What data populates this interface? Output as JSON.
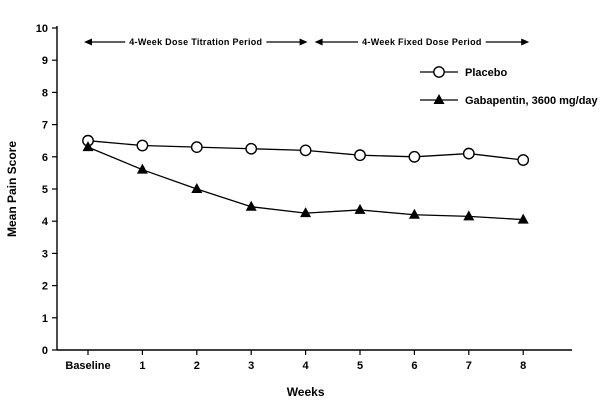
{
  "colors": {
    "line": "#000000",
    "background": "#ffffff"
  },
  "chart_data": {
    "type": "line",
    "title": "",
    "xlabel": "Weeks",
    "ylabel": "Mean Pain Score",
    "x_categories": [
      "Baseline",
      "1",
      "2",
      "3",
      "4",
      "5",
      "6",
      "7",
      "8"
    ],
    "ylim": [
      0,
      10
    ],
    "yticks": [
      0,
      1,
      2,
      3,
      4,
      5,
      6,
      7,
      8,
      9,
      10
    ],
    "grid": false,
    "legend_position": "upper right",
    "series": [
      {
        "name": "Placebo",
        "marker": "open-circle",
        "values": [
          6.5,
          6.35,
          6.3,
          6.25,
          6.2,
          6.05,
          6.0,
          6.1,
          5.9
        ]
      },
      {
        "name": "Gabapentin, 3600 mg/day",
        "marker": "filled-triangle",
        "values": [
          6.3,
          5.6,
          5.0,
          4.45,
          4.25,
          4.35,
          4.2,
          4.15,
          4.05
        ]
      }
    ],
    "annotations": [
      {
        "label": "4-Week Dose Titration Period",
        "span": [
          "Baseline",
          "4"
        ]
      },
      {
        "label": "4-Week Fixed Dose Period",
        "span": [
          "4",
          "8"
        ]
      }
    ]
  }
}
